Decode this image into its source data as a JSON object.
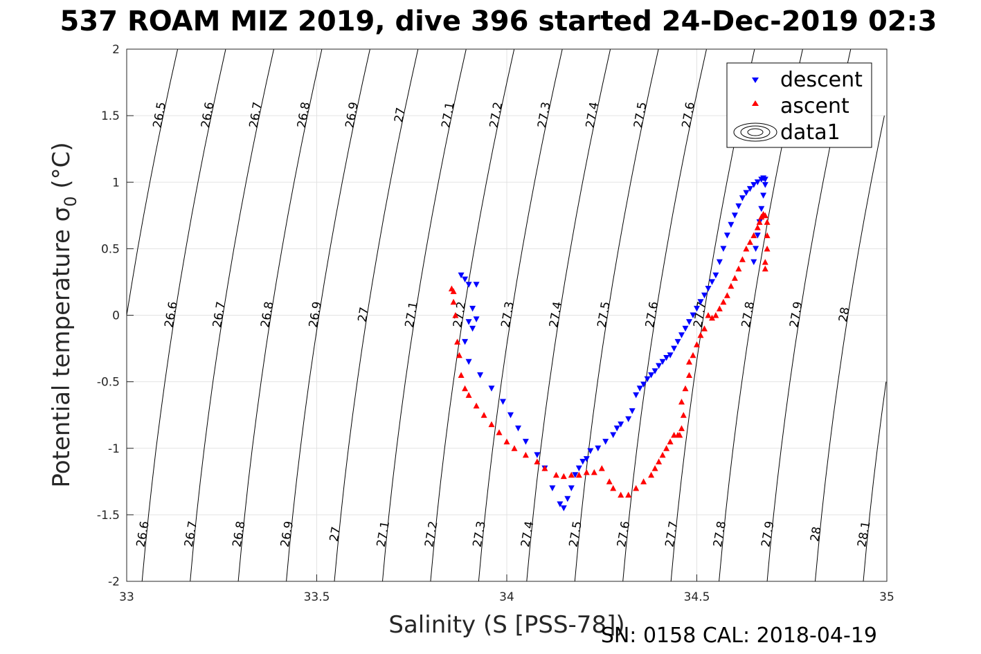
{
  "chart_data": {
    "type": "scatter",
    "title": "537 ROAM MIZ 2019, dive 396 started 24-Dec-2019 02:3",
    "xlabel": "Salinity (S [PSS-78])",
    "ylabel": "Potential temperature σ",
    "ylabel_sub": "0",
    "ylabel_unit": " (°C)",
    "footer": "SN: 0158  CAL: 2018-04-19",
    "xlim": [
      33,
      35
    ],
    "ylim": [
      -2,
      2
    ],
    "xticks": [
      33,
      33.5,
      34,
      34.5,
      35
    ],
    "xtick_labels": [
      "33",
      "33.5",
      "34",
      "34.5",
      "35"
    ],
    "yticks": [
      -2,
      -1.5,
      -1,
      -0.5,
      0,
      0.5,
      1,
      1.5,
      2
    ],
    "ytick_labels": [
      "-2",
      "-1.5",
      "-1",
      "-0.5",
      "0",
      "0.5",
      "1",
      "1.5",
      "2"
    ],
    "grid": true,
    "legend_position": "top-right",
    "legend": [
      "descent",
      "ascent",
      "data1"
    ],
    "series": [
      {
        "name": "descent",
        "color": "#0000ff",
        "marker": "triangle-down",
        "x": [
          33.88,
          33.89,
          33.9,
          33.92,
          33.91,
          33.9,
          33.89,
          33.91,
          33.92,
          33.9,
          33.93,
          33.96,
          33.99,
          34.01,
          34.03,
          34.05,
          34.08,
          34.1,
          34.12,
          34.14,
          34.15,
          34.16,
          34.17,
          34.18,
          34.19,
          34.2,
          34.21,
          34.22,
          34.24,
          34.26,
          34.28,
          34.29,
          34.3,
          34.32,
          34.33,
          34.34,
          34.35,
          34.36,
          34.37,
          34.38,
          34.39,
          34.4,
          34.41,
          34.42,
          34.43,
          34.44,
          34.45,
          34.46,
          34.47,
          34.48,
          34.49,
          34.5,
          34.51,
          34.52,
          34.53,
          34.54,
          34.55,
          34.56,
          34.57,
          34.58,
          34.59,
          34.6,
          34.61,
          34.62,
          34.63,
          34.64,
          34.65,
          34.66,
          34.67,
          34.675,
          34.68,
          34.68,
          34.675,
          34.67,
          34.665,
          34.66,
          34.655,
          34.65
        ],
        "y": [
          0.3,
          0.27,
          0.23,
          0.23,
          0.05,
          -0.05,
          -0.2,
          -0.1,
          -0.03,
          -0.35,
          -0.45,
          -0.55,
          -0.65,
          -0.75,
          -0.85,
          -0.95,
          -1.05,
          -1.15,
          -1.3,
          -1.42,
          -1.45,
          -1.38,
          -1.3,
          -1.2,
          -1.15,
          -1.1,
          -1.08,
          -1.02,
          -1.0,
          -0.95,
          -0.9,
          -0.85,
          -0.82,
          -0.78,
          -0.72,
          -0.6,
          -0.55,
          -0.52,
          -0.48,
          -0.45,
          -0.42,
          -0.38,
          -0.35,
          -0.32,
          -0.3,
          -0.25,
          -0.2,
          -0.15,
          -0.1,
          -0.05,
          0.0,
          0.05,
          0.1,
          0.15,
          0.2,
          0.25,
          0.3,
          0.4,
          0.5,
          0.6,
          0.68,
          0.75,
          0.82,
          0.88,
          0.92,
          0.95,
          0.98,
          1.0,
          1.02,
          1.03,
          1.02,
          0.98,
          0.9,
          0.8,
          0.7,
          0.6,
          0.5,
          0.4
        ]
      },
      {
        "name": "ascent",
        "color": "#ff0000",
        "marker": "triangle-up",
        "x": [
          34.68,
          34.68,
          34.685,
          34.685,
          34.685,
          34.68,
          34.675,
          34.67,
          34.665,
          34.66,
          34.65,
          34.64,
          34.63,
          34.62,
          34.61,
          34.6,
          34.59,
          34.58,
          34.57,
          34.56,
          34.55,
          34.54,
          34.53,
          34.52,
          34.51,
          34.5,
          34.49,
          34.48,
          34.48,
          34.47,
          34.46,
          34.465,
          34.46,
          34.455,
          34.45,
          34.44,
          34.43,
          34.42,
          34.41,
          34.4,
          34.39,
          34.38,
          34.36,
          34.34,
          34.32,
          34.3,
          34.28,
          34.27,
          34.25,
          34.23,
          34.21,
          34.19,
          34.17,
          34.15,
          34.13,
          34.1,
          34.08,
          34.05,
          34.02,
          34.0,
          33.98,
          33.96,
          33.94,
          33.92,
          33.9,
          33.89,
          33.88,
          33.875,
          33.87,
          33.865,
          33.86,
          33.86,
          33.855
        ],
        "y": [
          0.35,
          0.4,
          0.5,
          0.6,
          0.7,
          0.75,
          0.76,
          0.74,
          0.7,
          0.66,
          0.6,
          0.55,
          0.5,
          0.42,
          0.35,
          0.28,
          0.22,
          0.15,
          0.1,
          0.05,
          0.0,
          -0.02,
          0.0,
          -0.1,
          -0.15,
          -0.22,
          -0.3,
          -0.35,
          -0.45,
          -0.55,
          -0.65,
          -0.75,
          -0.85,
          -0.9,
          -0.9,
          -0.9,
          -0.95,
          -1.0,
          -1.05,
          -1.1,
          -1.15,
          -1.2,
          -1.25,
          -1.3,
          -1.35,
          -1.35,
          -1.3,
          -1.25,
          -1.15,
          -1.18,
          -1.18,
          -1.2,
          -1.2,
          -1.21,
          -1.2,
          -1.15,
          -1.1,
          -1.05,
          -1.0,
          -0.95,
          -0.88,
          -0.82,
          -0.75,
          -0.68,
          -0.6,
          -0.55,
          -0.45,
          -0.3,
          -0.2,
          0.0,
          0.1,
          0.18,
          0.2
        ]
      }
    ],
    "contour_labels": [
      "26.5",
      "26.6",
      "26.7",
      "26.8",
      "26.9",
      "27",
      "27.1",
      "27.2",
      "27.3",
      "27.4",
      "27.5",
      "27.6",
      "27.7",
      "27.8",
      "27.9",
      "28",
      "28.1"
    ]
  }
}
